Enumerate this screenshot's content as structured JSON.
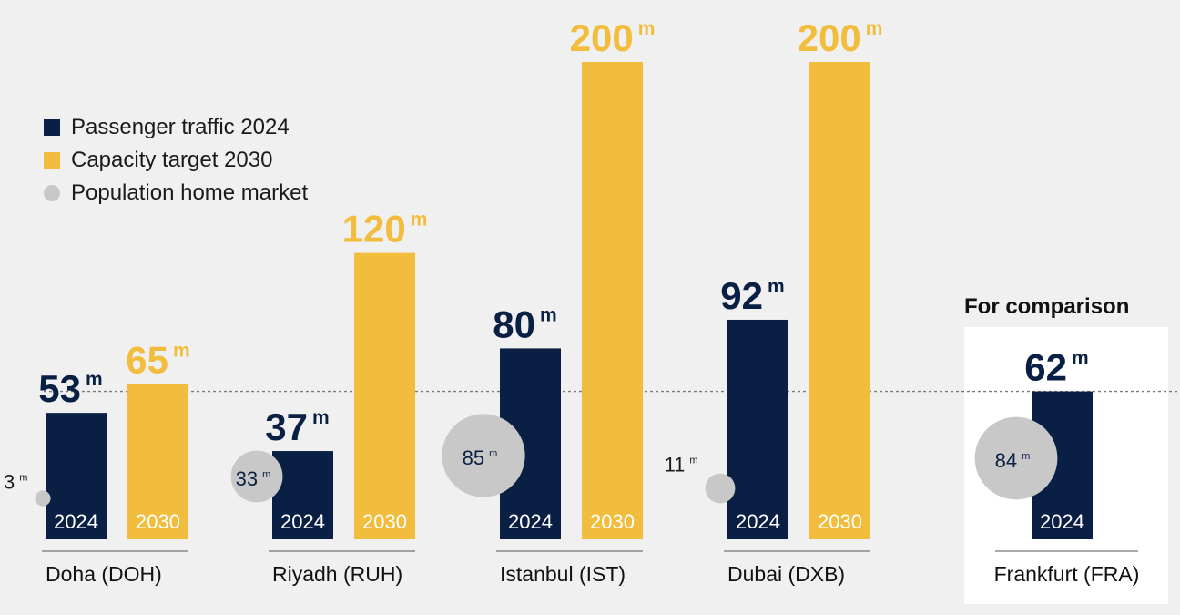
{
  "legend": {
    "traffic_label": "Passenger traffic 2024",
    "capacity_label": "Capacity target 2030",
    "population_label": "Population home market"
  },
  "colors": {
    "traffic": "#0a1f44",
    "capacity": "#f2bd3c",
    "population": "#c8c8c8",
    "background": "#f0f0f0",
    "comparison_panel": "#ffffff"
  },
  "chart_data": {
    "type": "bar",
    "unit_suffix": "m",
    "year_labels": {
      "traffic": "2024",
      "capacity": "2030"
    },
    "reference_line_value": 62,
    "comparison_label": "For comparison",
    "grid": false,
    "legend_position": "top-left",
    "airports": [
      {
        "name": "Doha (DOH)",
        "traffic_2024": 53,
        "capacity_2030": 65,
        "population": 3,
        "comparison": false
      },
      {
        "name": "Riyadh (RUH)",
        "traffic_2024": 37,
        "capacity_2030": 120,
        "population": 33,
        "comparison": false
      },
      {
        "name": "Istanbul (IST)",
        "traffic_2024": 80,
        "capacity_2030": 200,
        "population": 85,
        "comparison": false
      },
      {
        "name": "Dubai (DXB)",
        "traffic_2024": 92,
        "capacity_2030": 200,
        "population": 11,
        "comparison": false
      },
      {
        "name": "Frankfurt (FRA)",
        "traffic_2024": 62,
        "capacity_2030": null,
        "population": 84,
        "comparison": true
      }
    ]
  }
}
